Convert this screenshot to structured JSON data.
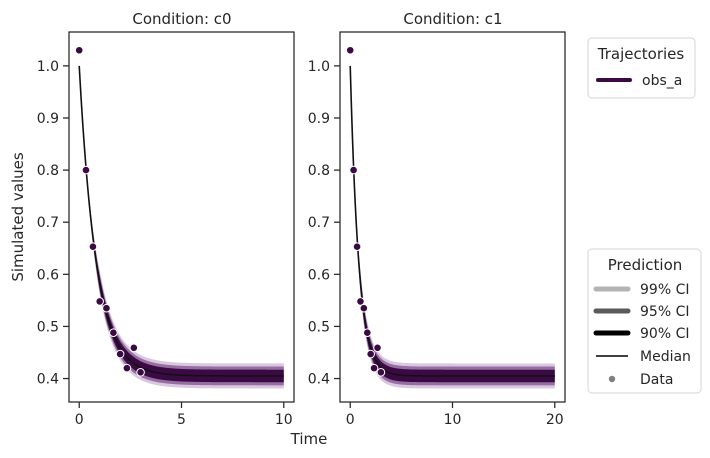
{
  "chart_data": [
    {
      "type": "line",
      "title": "Condition: c0",
      "xlabel": "Time",
      "ylabel": "Simulated values",
      "xlim": [
        -0.5,
        10.5
      ],
      "ylim": [
        0.355,
        1.065
      ],
      "xticks": [
        0,
        5,
        10
      ],
      "yticks": [
        0.4,
        0.5,
        0.6,
        0.7,
        0.8,
        0.9,
        1.0
      ],
      "xtick_labels": [
        "0",
        "5",
        "10"
      ],
      "ytick_labels": [
        "0.4",
        "0.5",
        "0.6",
        "0.7",
        "0.8",
        "0.9",
        "1.0"
      ],
      "model": {
        "baseline": 0.405,
        "amplitude": 0.595,
        "rate": 1.2,
        "t_max": 10
      },
      "bands": {
        "ci99": 0.024,
        "ci95": 0.018,
        "ci90": 0.012
      },
      "data_points": {
        "x": [
          0.0,
          0.33,
          0.67,
          1.0,
          1.33,
          1.67,
          2.0,
          2.33,
          2.67,
          3.0
        ],
        "y": [
          1.03,
          0.8,
          0.653,
          0.548,
          0.535,
          0.488,
          0.447,
          0.42,
          0.459,
          0.412
        ]
      }
    },
    {
      "type": "line",
      "title": "Condition: c1",
      "xlabel": "Time",
      "ylabel": "",
      "xlim": [
        -1.0,
        21.0
      ],
      "ylim": [
        0.355,
        1.065
      ],
      "xticks": [
        0,
        10,
        20
      ],
      "yticks": [
        0.4,
        0.5,
        0.6,
        0.7,
        0.8,
        0.9,
        1.0
      ],
      "xtick_labels": [
        "0",
        "10",
        "20"
      ],
      "ytick_labels": [
        "0.4",
        "0.5",
        "0.6",
        "0.7",
        "0.8",
        "0.9",
        "1.0"
      ],
      "model": {
        "baseline": 0.405,
        "amplitude": 0.595,
        "rate": 1.2,
        "t_max": 20
      },
      "bands": {
        "ci99": 0.024,
        "ci95": 0.018,
        "ci90": 0.012
      },
      "data_points": {
        "x": [
          0.0,
          0.33,
          0.67,
          1.0,
          1.33,
          1.67,
          2.0,
          2.33,
          2.67,
          3.0
        ],
        "y": [
          1.03,
          0.8,
          0.653,
          0.548,
          0.535,
          0.488,
          0.447,
          0.42,
          0.459,
          0.412
        ]
      }
    }
  ],
  "shared_xlabel": "Time",
  "shared_ylabel": "Simulated values",
  "legend_trajectories": {
    "title": "Trajectories",
    "entries": [
      {
        "label": "obs_a",
        "color": "#3b0a45"
      }
    ]
  },
  "legend_prediction": {
    "title": "Prediction",
    "entries": [
      {
        "label": "99% CI",
        "kind": "band",
        "color": "#b3b3b3"
      },
      {
        "label": "95% CI",
        "kind": "band",
        "color": "#5a5a5a"
      },
      {
        "label": "90% CI",
        "kind": "band",
        "color": "#000000"
      },
      {
        "label": "Median",
        "kind": "line",
        "color": "#000000"
      },
      {
        "label": "Data",
        "kind": "marker",
        "color": "#808080"
      }
    ]
  },
  "colors": {
    "series": "#3b0a45",
    "ci99": "#cdb6d6",
    "ci95": "#8a5e95",
    "ci90": "#3b0a45",
    "median": "#111111"
  }
}
